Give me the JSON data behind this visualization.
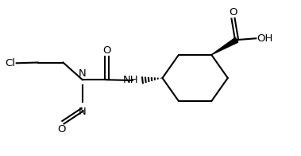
{
  "background": "#ffffff",
  "line_color": "#000000",
  "line_width": 1.5,
  "fig_width": 3.79,
  "fig_height": 1.96,
  "dpi": 100,
  "xlim": [
    0,
    10
  ],
  "ylim": [
    0,
    5.2
  ]
}
